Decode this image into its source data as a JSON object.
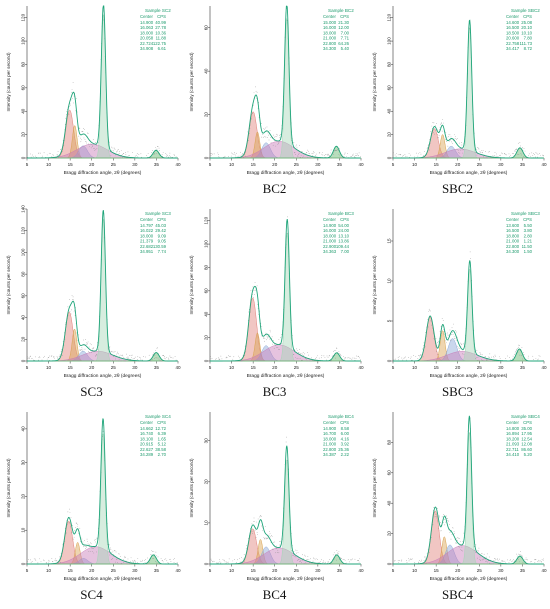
{
  "chart_data": [
    {
      "type": "line",
      "caption": "SC2",
      "legend_title": "Sample SC2",
      "legend_header": [
        "Center",
        "CPS"
      ],
      "peaks": [
        [
          14.9,
          40.99
        ],
        [
          16.063,
          27.78
        ],
        [
          18.0,
          10.36
        ],
        [
          20.058,
          11.88
        ],
        [
          22.724,
          122.75
        ],
        [
          34.908,
          6.61
        ]
      ],
      "ylim": [
        0,
        130
      ],
      "ytick_step": 20,
      "ytick_max": 120,
      "xlim": [
        5,
        40
      ]
    },
    {
      "type": "line",
      "caption": "BC2",
      "legend_title": "Sample BC2",
      "legend_header": [
        "Center",
        "CPS"
      ],
      "peaks": [
        [
          15.0,
          21.3
        ],
        [
          16.0,
          12.0
        ],
        [
          18.0,
          7.0
        ],
        [
          21.0,
          7.71
        ],
        [
          22.8,
          64.26
        ],
        [
          34.3,
          5.4
        ]
      ],
      "ylim": [
        0,
        70
      ],
      "ytick_step": 20,
      "ytick_max": 60,
      "xlim": [
        5,
        40
      ]
    },
    {
      "type": "line",
      "caption": "SBC2",
      "legend_title": "Sample SBC2",
      "legend_header": [
        "Center",
        "CPS"
      ],
      "peaks": [
        [
          14.6,
          25.08
        ],
        [
          16.5,
          20.1
        ],
        [
          18.5,
          10.1
        ],
        [
          20.6,
          7.8
        ],
        [
          22.758,
          111.73
        ],
        [
          34.417,
          8.72
        ]
      ],
      "ylim": [
        0,
        130
      ],
      "ytick_step": 20,
      "ytick_max": 120,
      "xlim": [
        5,
        40
      ]
    },
    {
      "type": "line",
      "caption": "SC3",
      "legend_title": "Sample SC3",
      "legend_header": [
        "Center",
        "CPS"
      ],
      "peaks": [
        [
          14.797,
          45.03
        ],
        [
          16.022,
          29.42
        ],
        [
          18.0,
          9.09
        ],
        [
          21.379,
          9.05
        ],
        [
          22.682,
          130.59
        ],
        [
          34.951,
          7.74
        ]
      ],
      "ylim": [
        0,
        140
      ],
      "ytick_step": 20,
      "ytick_max": 140,
      "xlim": [
        5,
        40
      ]
    },
    {
      "type": "line",
      "caption": "BC3",
      "legend_title": "Sample BC3",
      "legend_header": [
        "Center",
        "CPS"
      ],
      "peaks": [
        [
          14.9,
          54.0
        ],
        [
          16.0,
          24.0
        ],
        [
          18.0,
          13.1
        ],
        [
          21.0,
          13.86
        ],
        [
          22.9,
          109.44
        ],
        [
          34.363,
          7.0
        ]
      ],
      "ylim": [
        0,
        130
      ],
      "ytick_step": 20,
      "ytick_max": 120,
      "xlim": [
        5,
        40
      ]
    },
    {
      "type": "line",
      "caption": "SBC3",
      "legend_title": "Sample SBC3",
      "legend_header": [
        "Center",
        "CPS"
      ],
      "peaks": [
        [
          13.6,
          5.5
        ],
        [
          16.5,
          3.8
        ],
        [
          18.8,
          2.8
        ],
        [
          21.0,
          1.21
        ],
        [
          22.8,
          11.5
        ],
        [
          34.3,
          1.5
        ]
      ],
      "ylim": [
        0,
        19
      ],
      "ytick_step": 5,
      "ytick_max": 15,
      "xlim": [
        5,
        40
      ]
    },
    {
      "type": "line",
      "caption": "SC4",
      "legend_title": "Sample SC4",
      "legend_header": [
        "Center",
        "CPS"
      ],
      "peaks": [
        [
          14.662,
          12.72
        ],
        [
          16.74,
          6.39
        ],
        [
          18.1,
          1.65
        ],
        [
          20.915,
          5.12
        ],
        [
          22.627,
          38.58
        ],
        [
          34.289,
          2.7
        ]
      ],
      "ylim": [
        0,
        45
      ],
      "ytick_step": 10,
      "ytick_max": 40,
      "xlim": [
        5,
        40
      ]
    },
    {
      "type": "line",
      "caption": "BC4",
      "legend_title": "Sample BC4",
      "legend_header": [
        "Center",
        "CPS"
      ],
      "peaks": [
        [
          14.9,
          8.58
        ],
        [
          16.7,
          6.0
        ],
        [
          18.0,
          4.16
        ],
        [
          21.0,
          3.92
        ],
        [
          22.8,
          25.36
        ],
        [
          34.387,
          2.22
        ]
      ],
      "ylim": [
        0,
        37
      ],
      "ytick_step": 10,
      "ytick_max": 30,
      "xlim": [
        5,
        40
      ]
    },
    {
      "type": "line",
      "caption": "SBC4",
      "legend_title": "Sample SBC4",
      "legend_header": [
        "Center",
        "CPS"
      ],
      "peaks": [
        [
          14.8,
          35.0
        ],
        [
          16.894,
          17.95
        ],
        [
          18.2,
          12.54
        ],
        [
          21.093,
          12.08
        ],
        [
          22.711,
          86.6
        ],
        [
          34.41,
          5.2
        ]
      ],
      "ylim": [
        0,
        100
      ],
      "ytick_step": 20,
      "ytick_max": 80,
      "xlim": [
        5,
        40
      ]
    }
  ],
  "xlabel": "Bragg diffraction angle, 2θ (degrees)",
  "ylabel": "Intensity (counts per second)",
  "xticks": [
    5,
    10,
    15,
    20,
    25,
    30,
    35,
    40
  ],
  "colors": {
    "fit": "#1fa57a",
    "data": "#8a8a8a",
    "peak_fills": [
      "#e0807a",
      "#d9a24f",
      "#8aa7d8",
      "#c77ab8",
      "#a6d6b8",
      "#62b36a"
    ],
    "legend": "#1c9a6c"
  }
}
